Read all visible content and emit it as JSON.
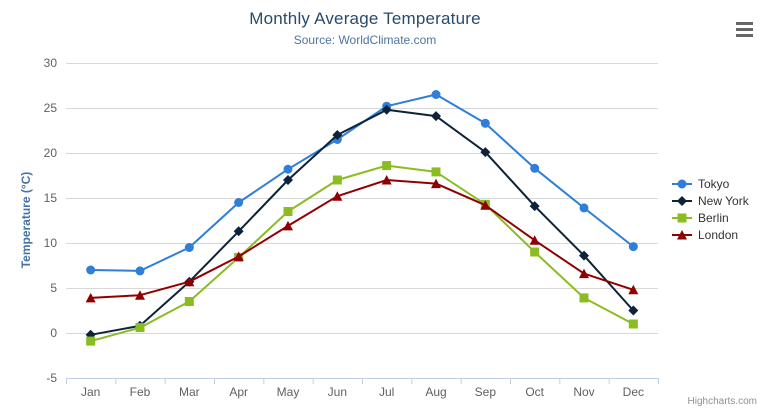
{
  "header": {
    "menu_icon": "hamburger-icon"
  },
  "chart_data": {
    "type": "line",
    "title": "Monthly Average Temperature",
    "subtitle": "Source: WorldClimate.com",
    "xlabel": "",
    "ylabel": "Temperature (°C)",
    "ylim": [
      -5,
      30
    ],
    "ytick_interval": 5,
    "grid": true,
    "legend_position": "right",
    "categories": [
      "Jan",
      "Feb",
      "Mar",
      "Apr",
      "May",
      "Jun",
      "Jul",
      "Aug",
      "Sep",
      "Oct",
      "Nov",
      "Dec"
    ],
    "series": [
      {
        "name": "Tokyo",
        "color": "#2f7ed8",
        "marker": "circle",
        "values": [
          7.0,
          6.9,
          9.5,
          14.5,
          18.2,
          21.5,
          25.2,
          26.5,
          23.3,
          18.3,
          13.9,
          9.6
        ]
      },
      {
        "name": "New York",
        "color": "#0d233a",
        "marker": "diamond",
        "values": [
          -0.2,
          0.8,
          5.7,
          11.3,
          17.0,
          22.0,
          24.8,
          24.1,
          20.1,
          14.1,
          8.6,
          2.5
        ]
      },
      {
        "name": "Berlin",
        "color": "#8bbc21",
        "marker": "square",
        "values": [
          -0.9,
          0.6,
          3.5,
          8.4,
          13.5,
          17.0,
          18.6,
          17.9,
          14.3,
          9.0,
          3.9,
          1.0
        ]
      },
      {
        "name": "London",
        "color": "#910000",
        "marker": "triangle",
        "values": [
          3.9,
          4.2,
          5.7,
          8.5,
          11.9,
          15.2,
          17.0,
          16.6,
          14.2,
          10.3,
          6.6,
          4.8
        ]
      }
    ]
  },
  "colors": {
    "title": "#274b6d",
    "subtitle": "#4d759e",
    "axis_title": "#4572a7",
    "axis_labels": "#606060",
    "gridline": "#d8d8d8",
    "axis_line": "#c0d0e0",
    "credits": "#909090"
  },
  "credits": {
    "label": "Highcharts.com"
  }
}
